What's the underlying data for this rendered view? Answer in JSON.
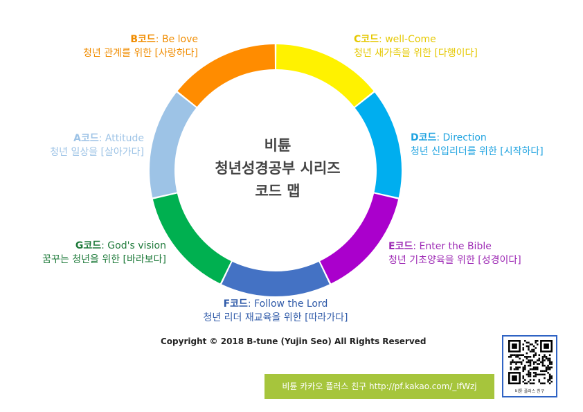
{
  "center": {
    "line1": "비튠",
    "line2": "청년성경공부 시리즈",
    "line3": "코드 맵"
  },
  "segments": [
    {
      "id": "c",
      "code": "C코드",
      "name": ": well-Come",
      "desc": "청년 새가족을 위한 [다행이다]",
      "color": "#FFF200"
    },
    {
      "id": "d",
      "code": "D코드",
      "name": ": Direction",
      "desc": "청년 신입리더를 위한 [시작하다]",
      "color": "#00AEEF"
    },
    {
      "id": "e",
      "code": "E코드",
      "name": ": Enter the Bible",
      "desc": "청년 기초양육을 위한 [성경이다]",
      "color": "#AA00CC"
    },
    {
      "id": "f",
      "code": "F코드",
      "name": ": Follow the Lord",
      "desc": "청년 리더 재교육을 위한 [따라가다]",
      "color": "#4472C4"
    },
    {
      "id": "g",
      "code": "G코드",
      "name": ": God's vision",
      "desc": "꿈꾸는 청년을 위한 [바라보다]",
      "color": "#00B050"
    },
    {
      "id": "a",
      "code": "A코드",
      "name": ": Attitude",
      "desc": "청년 일상을 [살아가다]",
      "color": "#9DC3E6"
    },
    {
      "id": "b",
      "code": "B코드",
      "name": ": Be love",
      "desc": "청년 관계를 위한 [사랑하다]",
      "color": "#FF8C00"
    }
  ],
  "label_colors": {
    "c": "#E5C800",
    "d": "#1FA3E0",
    "e": "#9E2BB5",
    "f": "#2F5AA8",
    "g": "#1E7A3A",
    "a": "#9DC3E6",
    "b": "#F08C00"
  },
  "copyright": "Copyright © 2018 B-tune (Yujin Seo) All Rights Reserved",
  "footer": "비튠 카카오 플러스 친구 http://pf.kakao.com/_IfWzj",
  "qr_caption": "비튠 플러스 친구"
}
